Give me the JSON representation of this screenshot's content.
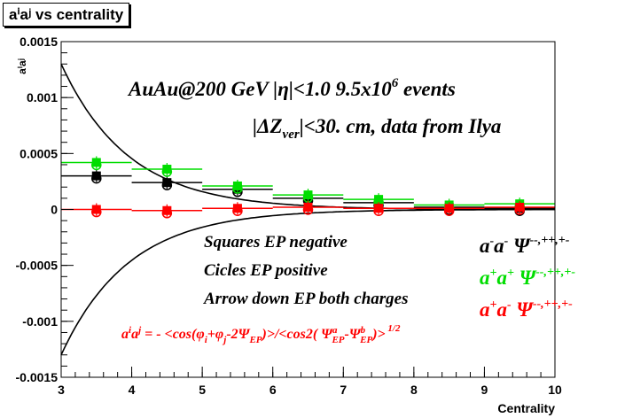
{
  "title": "aⁱaʲ vs centrality",
  "chart_data": {
    "type": "scatter",
    "title": "aⁱaʲ vs centrality",
    "xlabel": "Centrality",
    "ylabel": "aⁱaʲ",
    "xlim": [
      3,
      10
    ],
    "ylim": [
      -0.0015,
      0.0015
    ],
    "x_ticks": [
      3,
      4,
      5,
      6,
      7,
      8,
      9,
      10
    ],
    "x_tick_labels": [
      "3",
      "4",
      "5",
      "6",
      "7",
      "8",
      "9",
      "10"
    ],
    "y_ticks": [
      -0.0015,
      -0.001,
      -0.0005,
      0,
      0.0005,
      0.001,
      0.0015
    ],
    "y_tick_labels": [
      "-0.0015",
      "-0.001",
      "-0.0005",
      "0",
      "0.0005",
      "0.001",
      "0.0015"
    ],
    "grid": false,
    "x": [
      3.5,
      4.5,
      5.5,
      6.5,
      7.5,
      8.5,
      9.5
    ],
    "series": [
      {
        "name": "a⁻a⁻",
        "color": "#000000",
        "marker": "square",
        "xerr": 0.5,
        "values": [
          0.0003,
          0.00024,
          0.00018,
          0.0001,
          6e-05,
          2e-05,
          1e-05
        ]
      },
      {
        "name": "a⁺a⁺",
        "color": "#00dd00",
        "marker": "square",
        "xerr": 0.5,
        "values": [
          0.00042,
          0.00036,
          0.00021,
          0.00013,
          9e-05,
          4e-05,
          5e-05
        ]
      },
      {
        "name": "a⁺a⁻",
        "color": "#ff0000",
        "marker": "square",
        "xerr": 0.5,
        "values": [
          0.0,
          -1e-05,
          1e-05,
          2e-05,
          1e-05,
          1e-05,
          2e-05
        ]
      }
    ],
    "annotations": [
      "AuAu@200 GeV |η|<1.0 9.5x10⁶ events",
      "|ΔZver|<30. cm, data from Ilya",
      "Squares EP negative",
      "Cicles EP positive",
      "Arrow down EP both charges",
      "aⁱaʲ = - <cos(φi+φj-2ΨEP)>/<cos2(ΨaEP-ΨbEP)>^1/2"
    ],
    "legend": [
      {
        "label": "a⁻a⁻  Ψ⁻⁻,⁺⁺,⁺⁻",
        "color": "#000000"
      },
      {
        "label": "a⁺a⁺  Ψ⁻⁻,⁺⁺,⁺⁻",
        "color": "#00dd00"
      },
      {
        "label": "a⁺a⁻  Ψ⁻⁻,⁺⁺,⁺⁻",
        "color": "#ff0000"
      }
    ]
  }
}
